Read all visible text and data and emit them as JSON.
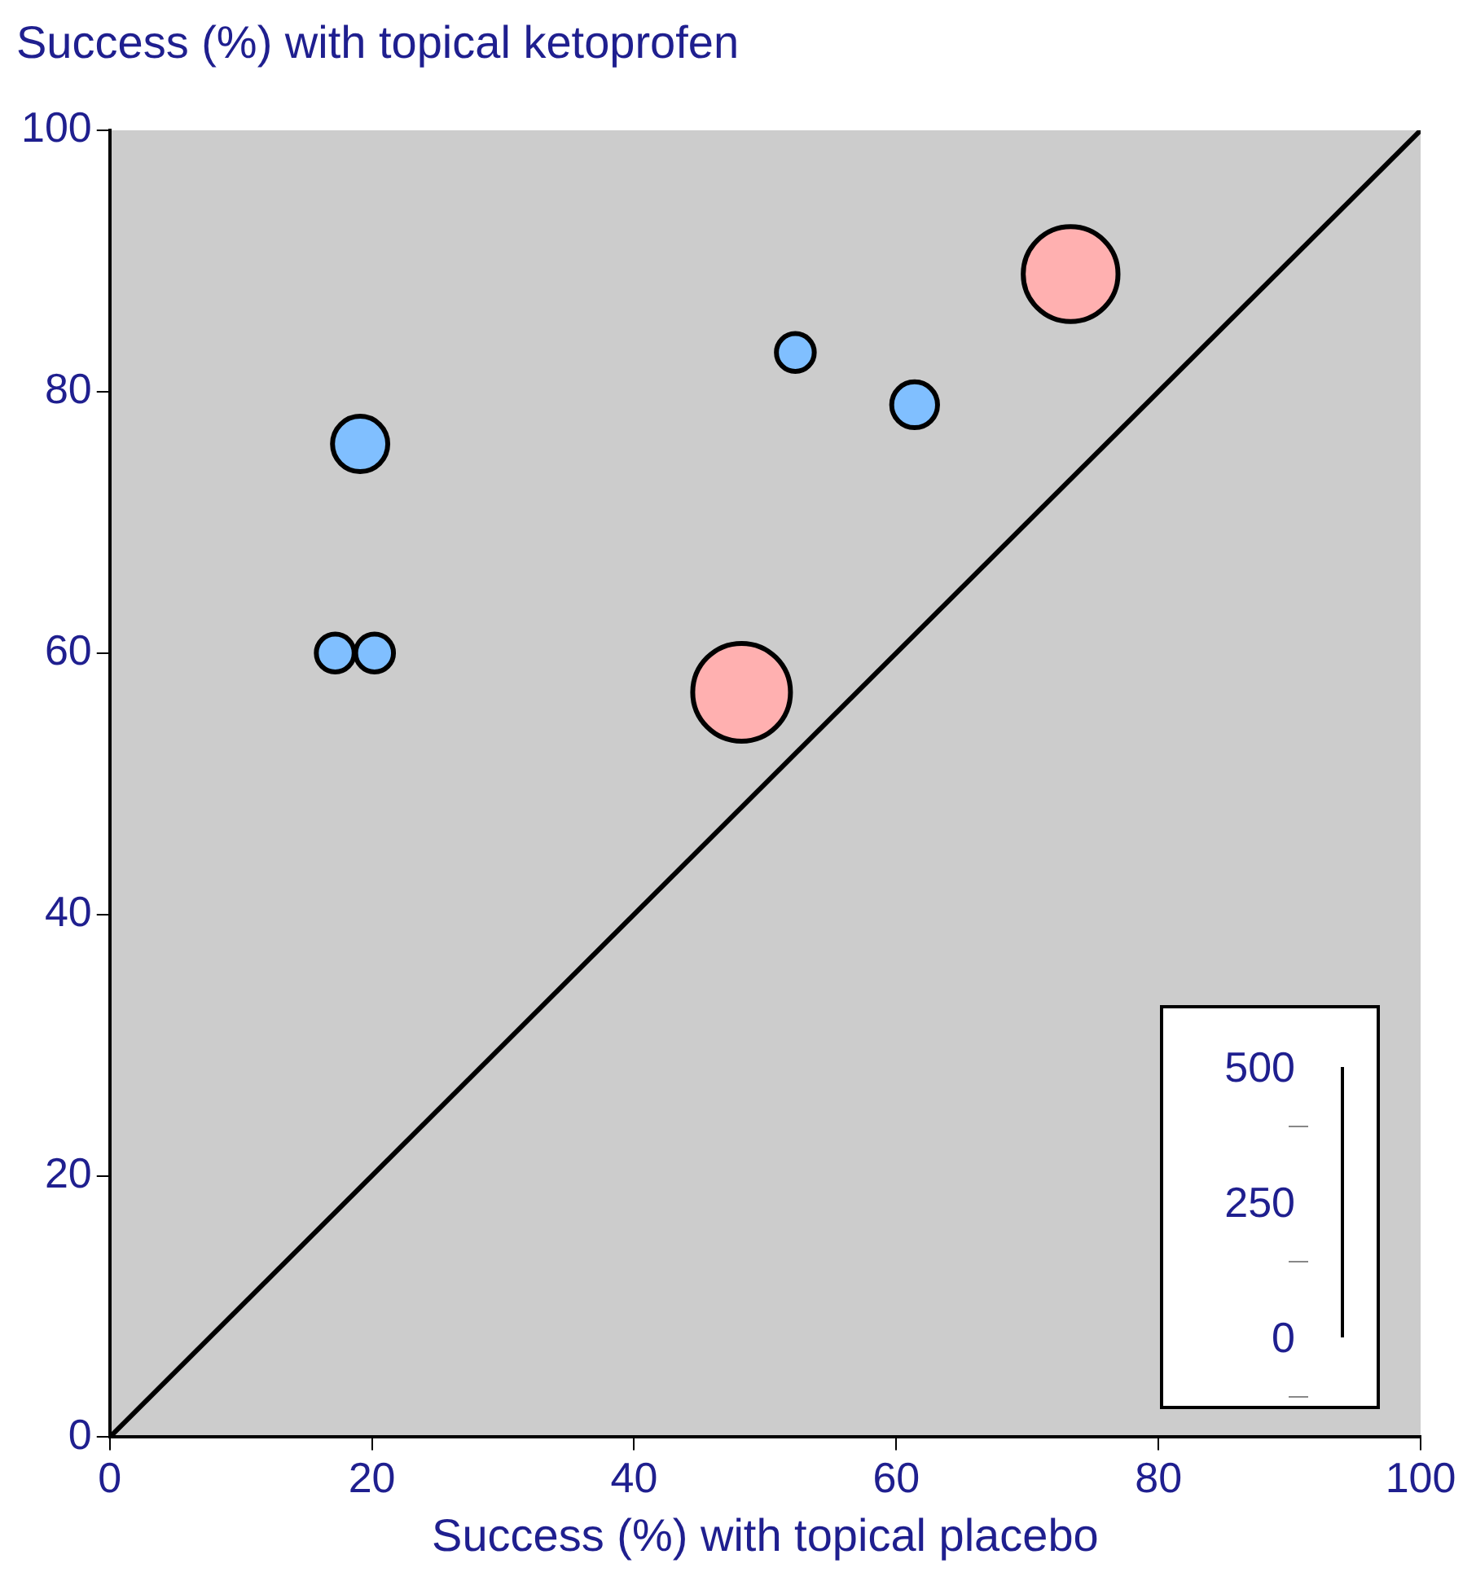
{
  "chart_data": [
    {
      "type": "bubble",
      "xlabel": "Success (%) with topical placebo",
      "ylabel": "Success (%) with topical ketoprofen",
      "xlim": [
        0,
        100
      ],
      "ylim": [
        0,
        100
      ],
      "xticks": [
        0,
        20,
        40,
        60,
        80,
        100
      ],
      "yticks": [
        0,
        20,
        40,
        60,
        80,
        100
      ],
      "grid": false,
      "legend": false,
      "series": [
        {
          "type": "bubble",
          "color": "#ffb0b0",
          "x": [
            73.3,
            48.2
          ],
          "values": [
            89,
            57
          ],
          "sizes": [
            0.94,
            1
          ]
        },
        {
          "type": "bubble",
          "color": "#80bfff",
          "x": [
            19.1,
            52.3,
            61.4,
            17.2,
            20.2
          ],
          "values": [
            76,
            83,
            79,
            60,
            60
          ],
          "sizes": [
            0.32,
            0.15,
            0.22,
            0.15,
            0.15
          ]
        },
        {
          "type": "line",
          "color": "#000000",
          "x": [
            0,
            100
          ],
          "values": [
            0,
            100
          ],
          "line_style": "solid"
        }
      ]
    },
    {
      "type": "other",
      "annotations": [
        "500",
        "250",
        "0"
      ]
    }
  ]
}
